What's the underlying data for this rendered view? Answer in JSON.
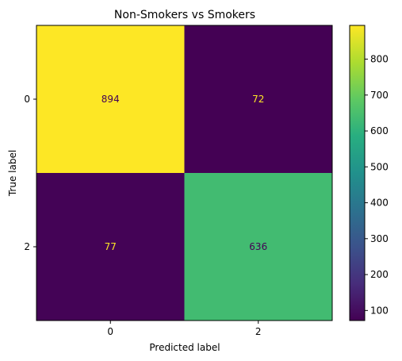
{
  "chart_data": {
    "type": "heatmap",
    "title": "Non-Smokers vs Smokers",
    "xlabel": "Predicted label",
    "ylabel": "True label",
    "x_categories": [
      "0",
      "2"
    ],
    "y_categories": [
      "0",
      "2"
    ],
    "matrix": [
      [
        894,
        72
      ],
      [
        77,
        636
      ]
    ],
    "colorbar": {
      "range": [
        72,
        894
      ],
      "ticks": [
        100,
        200,
        300,
        400,
        500,
        600,
        700,
        800
      ],
      "colormap": "viridis"
    }
  }
}
